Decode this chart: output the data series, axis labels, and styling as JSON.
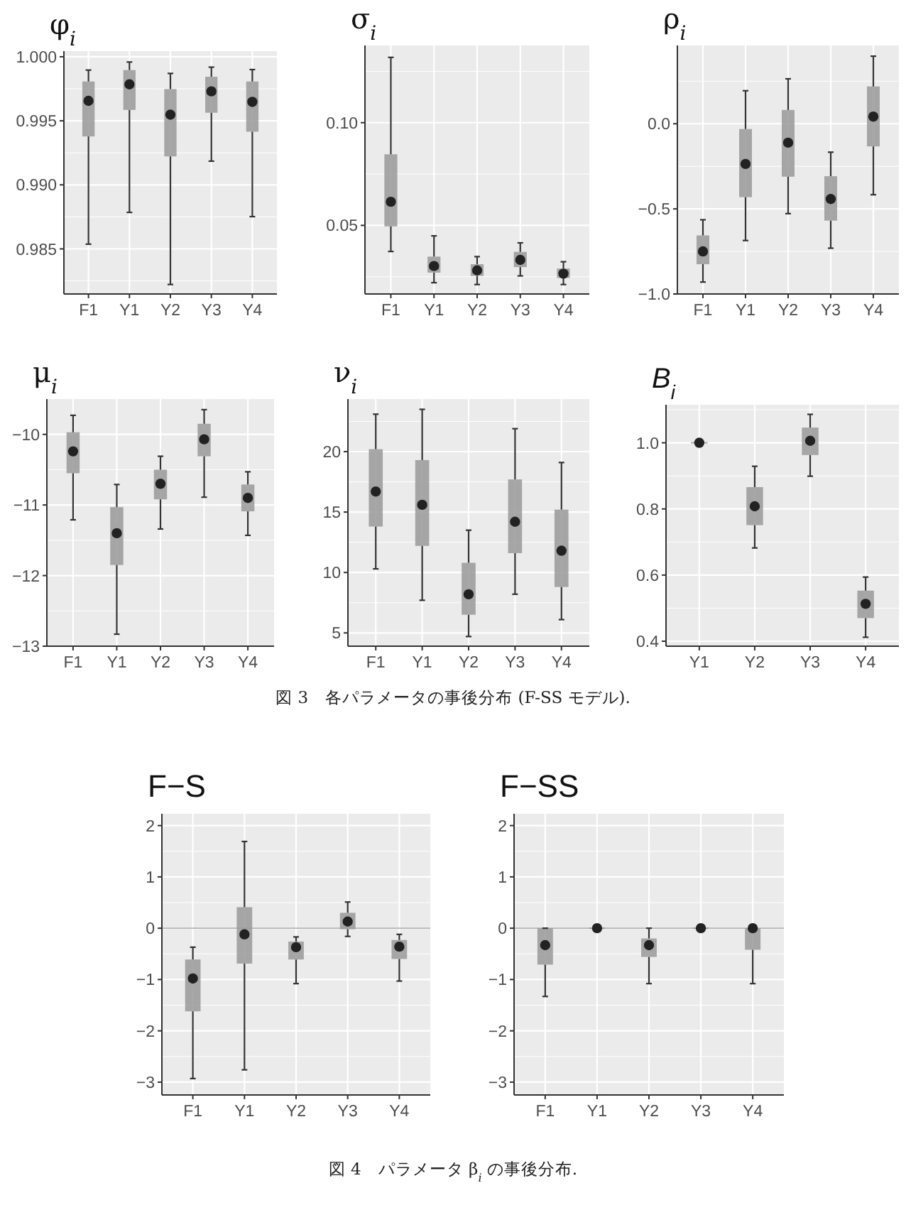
{
  "chart_data": [
    {
      "type": "box",
      "title": "φ$_{i}$",
      "categories": [
        "F1",
        "Y1",
        "Y2",
        "Y3",
        "Y4"
      ],
      "ylim": [
        0.98148,
        1.00044
      ],
      "yticks": [
        {
          "value": 0.985,
          "label": "0.985"
        },
        {
          "value": 0.99,
          "label": "0.990"
        },
        {
          "value": 0.995,
          "label": "0.995"
        },
        {
          "value": 1.0,
          "label": "1.000"
        }
      ],
      "grid": true,
      "boxes": [
        {
          "low": 0.98537,
          "q1": 0.99378,
          "median": 0.99656,
          "q3": 0.99807,
          "high": 0.99896
        },
        {
          "low": 0.98785,
          "q1": 0.99585,
          "median": 0.99785,
          "q3": 0.99896,
          "high": 0.99959
        },
        {
          "low": 0.98222,
          "q1": 0.99222,
          "median": 0.99548,
          "q3": 0.99748,
          "high": 0.9987
        },
        {
          "low": 0.99185,
          "q1": 0.99563,
          "median": 0.9973,
          "q3": 0.99844,
          "high": 0.99919
        },
        {
          "low": 0.98752,
          "q1": 0.99415,
          "median": 0.99648,
          "q3": 0.99807,
          "high": 0.999
        }
      ]
    },
    {
      "type": "box",
      "title": "σ$_{i}$",
      "categories": [
        "F1",
        "Y1",
        "Y2",
        "Y3",
        "Y4"
      ],
      "ylim": [
        0.0166,
        0.1376
      ],
      "yticks": [
        {
          "value": 0.05,
          "label": "0.05"
        },
        {
          "value": 0.1,
          "label": "0.10"
        }
      ],
      "grid": true,
      "boxes": [
        {
          "low": 0.0373,
          "q1": 0.0495,
          "median": 0.0615,
          "q3": 0.0846,
          "high": 0.1318
        },
        {
          "low": 0.0221,
          "q1": 0.027,
          "median": 0.0302,
          "q3": 0.0348,
          "high": 0.0449
        },
        {
          "low": 0.0212,
          "q1": 0.0254,
          "median": 0.0281,
          "q3": 0.0311,
          "high": 0.0348
        },
        {
          "low": 0.0254,
          "q1": 0.0297,
          "median": 0.0332,
          "q3": 0.0371,
          "high": 0.0415
        },
        {
          "low": 0.0212,
          "q1": 0.0244,
          "median": 0.0265,
          "q3": 0.029,
          "high": 0.0323
        }
      ]
    },
    {
      "type": "box",
      "title": "ρ$_{i}$",
      "categories": [
        "F1",
        "Y1",
        "Y2",
        "Y3",
        "Y4"
      ],
      "ylim": [
        -1.0,
        0.46
      ],
      "yticks": [
        {
          "value": -1.0,
          "label": "−1.0"
        },
        {
          "value": -0.5,
          "label": "−0.5"
        },
        {
          "value": 0.0,
          "label": "0.0"
        }
      ],
      "grid": true,
      "boxes": [
        {
          "low": -0.93,
          "q1": -0.825,
          "median": -0.75,
          "q3": -0.656,
          "high": -0.564
        },
        {
          "low": -0.686,
          "q1": -0.431,
          "median": -0.236,
          "q3": -0.031,
          "high": 0.194
        },
        {
          "low": -0.528,
          "q1": -0.311,
          "median": -0.111,
          "q3": 0.081,
          "high": 0.264
        },
        {
          "low": -0.731,
          "q1": -0.569,
          "median": -0.442,
          "q3": -0.308,
          "high": -0.167
        },
        {
          "low": -0.417,
          "q1": -0.133,
          "median": 0.042,
          "q3": 0.219,
          "high": 0.397
        }
      ]
    },
    {
      "type": "box",
      "title": "μ$_{i}$",
      "categories": [
        "F1",
        "Y1",
        "Y2",
        "Y3",
        "Y4"
      ],
      "ylim": [
        -13.0,
        -9.5
      ],
      "yticks": [
        {
          "value": -13,
          "label": "−13"
        },
        {
          "value": -12,
          "label": "−12"
        },
        {
          "value": -11,
          "label": "−11"
        },
        {
          "value": -10,
          "label": "−10"
        }
      ],
      "grid": true,
      "boxes": [
        {
          "low": -11.21,
          "q1": -10.55,
          "median": -10.24,
          "q3": -9.97,
          "high": -9.73
        },
        {
          "low": -12.83,
          "q1": -11.85,
          "median": -11.4,
          "q3": -11.03,
          "high": -10.71
        },
        {
          "low": -11.34,
          "q1": -10.92,
          "median": -10.7,
          "q3": -10.5,
          "high": -10.31
        },
        {
          "low": -10.89,
          "q1": -10.31,
          "median": -10.07,
          "q3": -9.85,
          "high": -9.65
        },
        {
          "low": -11.43,
          "q1": -11.09,
          "median": -10.9,
          "q3": -10.71,
          "high": -10.53
        }
      ]
    },
    {
      "type": "box",
      "title": "ν$_{i}$",
      "categories": [
        "F1",
        "Y1",
        "Y2",
        "Y3",
        "Y4"
      ],
      "ylim": [
        3.9,
        24.35
      ],
      "yticks": [
        5,
        10,
        15,
        20
      ],
      "grid": true,
      "boxes": [
        {
          "low": 10.3,
          "q1": 13.8,
          "median": 16.7,
          "q3": 20.2,
          "high": 23.1
        },
        {
          "low": 7.7,
          "q1": 12.2,
          "median": 15.6,
          "q3": 19.3,
          "high": 23.5
        },
        {
          "low": 4.7,
          "q1": 6.5,
          "median": 8.2,
          "q3": 10.8,
          "high": 13.5
        },
        {
          "low": 8.2,
          "q1": 11.6,
          "median": 14.2,
          "q3": 17.7,
          "high": 21.9
        },
        {
          "low": 6.1,
          "q1": 8.8,
          "median": 11.8,
          "q3": 15.2,
          "high": 19.1
        }
      ]
    },
    {
      "type": "box",
      "title": "B$_{i}$",
      "categories": [
        "Y1",
        "Y2",
        "Y3",
        "Y4"
      ],
      "ylim": [
        0.385,
        1.115
      ],
      "yticks": [
        {
          "value": 0.4,
          "label": "0.4"
        },
        {
          "value": 0.6,
          "label": "0.6"
        },
        {
          "value": 0.8,
          "label": "0.8"
        },
        {
          "value": 1.0,
          "label": "1.0"
        }
      ],
      "grid": true,
      "annotations": [
        "図 3　各パラメータの事後分布 (F-SS モデル)."
      ],
      "boxes": [
        {
          "low": 1.0,
          "q1": 1.0,
          "median": 1.0,
          "q3": 1.0,
          "high": 1.0
        },
        {
          "low": 0.682,
          "q1": 0.751,
          "median": 0.808,
          "q3": 0.866,
          "high": 0.929
        },
        {
          "low": 0.899,
          "q1": 0.963,
          "median": 1.006,
          "q3": 1.046,
          "high": 1.086
        },
        {
          "low": 0.412,
          "q1": 0.47,
          "median": 0.513,
          "q3": 0.553,
          "high": 0.594
        }
      ]
    },
    {
      "type": "box",
      "title": "F−S",
      "categories": [
        "F1",
        "Y1",
        "Y2",
        "Y3",
        "Y4"
      ],
      "ylim": [
        -3.25,
        2.23
      ],
      "yticks": [
        {
          "value": -3,
          "label": "−3"
        },
        {
          "value": -2,
          "label": "−2"
        },
        {
          "value": -1,
          "label": "−1"
        },
        0,
        1,
        2
      ],
      "grid": true,
      "ref_lines": [
        {
          "axis": "y",
          "value": 0,
          "color": "#b3b3b3"
        }
      ],
      "boxes": [
        {
          "low": -2.93,
          "q1": -1.62,
          "median": -0.98,
          "q3": -0.61,
          "high": -0.37
        },
        {
          "low": -2.76,
          "q1": -0.69,
          "median": -0.12,
          "q3": 0.41,
          "high": 1.69
        },
        {
          "low": -1.08,
          "q1": -0.61,
          "median": -0.37,
          "q3": -0.26,
          "high": -0.17
        },
        {
          "low": -0.16,
          "q1": -0.02,
          "median": 0.13,
          "q3": 0.3,
          "high": 0.51
        },
        {
          "low": -1.03,
          "q1": -0.6,
          "median": -0.36,
          "q3": -0.23,
          "high": -0.12
        }
      ]
    },
    {
      "type": "box",
      "title": "F−SS",
      "categories": [
        "F1",
        "Y1",
        "Y2",
        "Y3",
        "Y4"
      ],
      "ylim": [
        -3.25,
        2.23
      ],
      "yticks": [
        {
          "value": -3,
          "label": "−3"
        },
        {
          "value": -2,
          "label": "−2"
        },
        {
          "value": -1,
          "label": "−1"
        },
        0,
        1,
        2
      ],
      "grid": true,
      "ref_lines": [
        {
          "axis": "y",
          "value": 0,
          "color": "#b3b3b3"
        }
      ],
      "annotations": [
        "図 4　パラメータ β$_{i}$ の事後分布."
      ],
      "boxes": [
        {
          "low": -1.33,
          "q1": -0.71,
          "median": -0.33,
          "q3": 0,
          "high": 0
        },
        {
          "low": 0,
          "q1": 0,
          "median": 0,
          "q3": 0,
          "high": 0
        },
        {
          "low": -1.08,
          "q1": -0.56,
          "median": -0.33,
          "q3": -0.2,
          "high": 0
        },
        {
          "low": 0,
          "q1": 0,
          "median": 0,
          "q3": 0,
          "high": 0
        },
        {
          "low": -1.08,
          "q1": -0.42,
          "median": 0,
          "q3": 0,
          "high": 0
        }
      ]
    }
  ]
}
